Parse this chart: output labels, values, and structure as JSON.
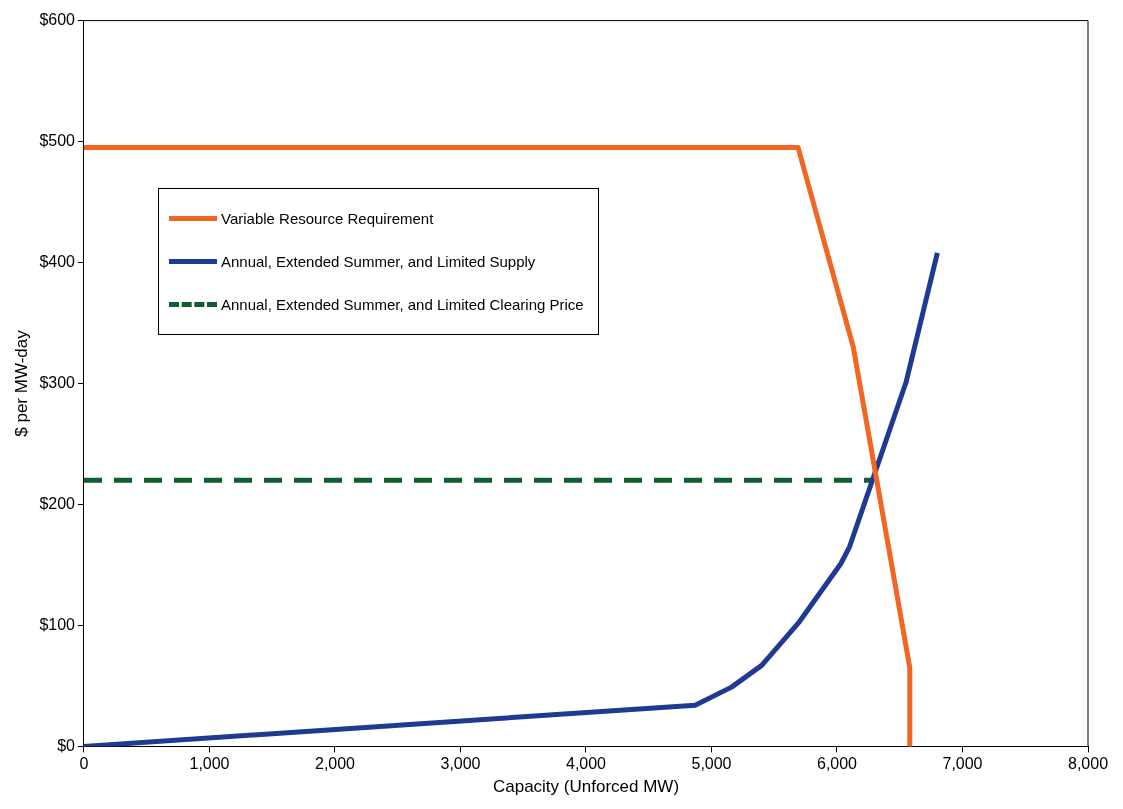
{
  "chart_data": {
    "type": "line",
    "xlabel": "Capacity (Unforced MW)",
    "ylabel": "$ per MW-day",
    "xlim": [
      0,
      8000
    ],
    "xticks": [
      {
        "value": 0,
        "label": "0"
      },
      {
        "value": 1000,
        "label": "1,000"
      },
      {
        "value": 2000,
        "label": "2,000"
      },
      {
        "value": 3000,
        "label": "3,000"
      },
      {
        "value": 4000,
        "label": "4,000"
      },
      {
        "value": 5000,
        "label": "5,000"
      },
      {
        "value": 6000,
        "label": "6,000"
      },
      {
        "value": 7000,
        "label": "7,000"
      },
      {
        "value": 8000,
        "label": "8,000"
      }
    ],
    "ylim": [
      0,
      600
    ],
    "yticks": [
      {
        "value": 0,
        "label": "$0"
      },
      {
        "value": 100,
        "label": "$100"
      },
      {
        "value": 200,
        "label": "$200"
      },
      {
        "value": 300,
        "label": "$300"
      },
      {
        "value": 400,
        "label": "$400"
      },
      {
        "value": 500,
        "label": "$500"
      },
      {
        "value": 600,
        "label": "$600"
      }
    ],
    "grid": false,
    "legend": "top left",
    "marker": "none",
    "series": [
      {
        "name": "Variable Resource Requirement",
        "color": "#f26522",
        "x": [
          0,
          5690,
          6130,
          6580,
          6580
        ],
        "values": [
          495,
          495,
          330,
          65,
          0
        ]
      },
      {
        "name": "Annual, Extended Summer, and Limited Supply",
        "color": "#1f3a93",
        "x": [
          0,
          4870,
          5160,
          5400,
          5700,
          6030,
          6100,
          6550,
          6800
        ],
        "values": [
          0,
          34,
          49,
          67,
          103,
          151,
          165,
          301,
          408
        ]
      },
      {
        "name": "Annual, Extended Summer, and Limited Clearing Price",
        "color": "#0e5e2e",
        "line_style": "dashed",
        "x": [
          0,
          6290
        ],
        "values": [
          220,
          220
        ]
      }
    ]
  }
}
